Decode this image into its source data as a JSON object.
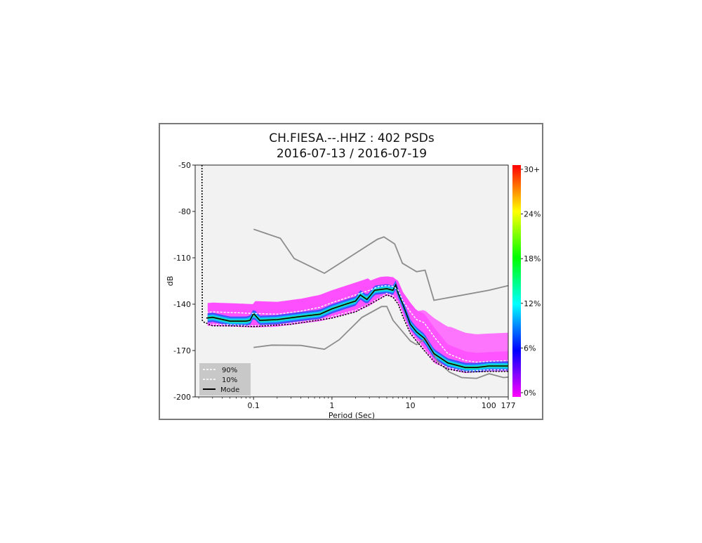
{
  "chart_data": {
    "type": "heatmap",
    "title": "CH.FIESA.--.HHZ : 402 PSDs",
    "subtitle": "2016-07-13 / 2016-07-19",
    "xlabel": "Period (Sec)",
    "ylabel": "dB",
    "x_scale": "log",
    "xlim": [
      0.018,
      177
    ],
    "ylim": [
      -200,
      -50
    ],
    "x_ticks": [
      {
        "value": 0.1,
        "label": "0.1"
      },
      {
        "value": 1,
        "label": "1"
      },
      {
        "value": 10,
        "label": "10"
      },
      {
        "value": 100,
        "label": "100"
      },
      {
        "value": 177,
        "label": "177"
      }
    ],
    "y_ticks": [
      {
        "value": -50,
        "label": "-50"
      },
      {
        "value": -80,
        "label": "-80"
      },
      {
        "value": -110,
        "label": "-110"
      },
      {
        "value": -140,
        "label": "-140"
      },
      {
        "value": -170,
        "label": "-170"
      },
      {
        "value": -200,
        "label": "-200"
      }
    ],
    "colorbar": {
      "ticks": [
        "30+",
        "24%",
        "18%",
        "12%",
        "6%",
        "0%"
      ],
      "colors": [
        "#ff00ff",
        "#0000ff",
        "#00ffff",
        "#00ff00",
        "#ffff00",
        "#ff0000"
      ]
    },
    "legend": {
      "position": "bottom-left",
      "entries": [
        {
          "label": "90%",
          "style": "dashed",
          "color": "#ffffff"
        },
        {
          "label": "10%",
          "style": "dashed",
          "color": "#ffffff"
        },
        {
          "label": "Mode",
          "style": "solid",
          "color": "#000000"
        }
      ]
    },
    "series": [
      {
        "key": "nhnm",
        "color": "#8c8c8c",
        "x": [
          0.1,
          0.22,
          0.33,
          0.8,
          3.8,
          4.6,
          6.3,
          7.9,
          12,
          15.4,
          20,
          100,
          177
        ],
        "y": [
          -91.5,
          -97.4,
          -110.5,
          -120,
          -98,
          -96.5,
          -101,
          -113.5,
          -119,
          -118,
          -137.5,
          -131,
          -128
        ]
      },
      {
        "key": "nlnm",
        "color": "#8c8c8c",
        "x": [
          0.1,
          0.17,
          0.4,
          0.8,
          1.24,
          2.4,
          4.3,
          5,
          6,
          10,
          12,
          15.6,
          21.9,
          31.6,
          45,
          70,
          101,
          154,
          177
        ],
        "y": [
          -168,
          -166.5,
          -166.7,
          -169.2,
          -163,
          -148.6,
          -141.5,
          -141.5,
          -150.4,
          -163.8,
          -166.2,
          -162.1,
          -176.6,
          -184,
          -187.5,
          -188,
          -185,
          -187.5,
          -187.2
        ]
      },
      {
        "key": "mode",
        "color": "#000000",
        "x": [
          0.025,
          0.03,
          0.05,
          0.08,
          0.09,
          0.1,
          0.12,
          0.2,
          0.4,
          0.7,
          1,
          1.5,
          2,
          2.3,
          2.8,
          3.5,
          5,
          6,
          6.5,
          7,
          8,
          10,
          12,
          15,
          20,
          30,
          50,
          70,
          100,
          177
        ],
        "y": [
          -149,
          -148.5,
          -151,
          -151,
          -150.5,
          -146,
          -150.5,
          -150,
          -148,
          -146.5,
          -143,
          -140,
          -138,
          -134,
          -137,
          -131,
          -130,
          -131,
          -127.5,
          -133,
          -140,
          -153,
          -158,
          -162,
          -172,
          -178,
          -181,
          -181,
          -180,
          -180
        ]
      },
      {
        "key": "p90",
        "color": "#ffffff",
        "x": [
          0.022,
          0.0225,
          0.03,
          0.06,
          0.1,
          0.2,
          0.4,
          0.7,
          1,
          2,
          3,
          4,
          5,
          6,
          7,
          8,
          10,
          12,
          15,
          20,
          30,
          50,
          70,
          100,
          177
        ],
        "y": [
          -50,
          -145.5,
          -145,
          -145.5,
          -146,
          -146.5,
          -144.5,
          -142,
          -139,
          -134,
          -131,
          -128.5,
          -128,
          -128.5,
          -131,
          -138,
          -145,
          -150,
          -152,
          -161,
          -172,
          -176.5,
          -177.5,
          -177,
          -176.5
        ]
      },
      {
        "key": "p10",
        "color": "#ffffff",
        "x": [
          0.022,
          0.03,
          0.06,
          0.1,
          0.2,
          0.4,
          0.7,
          1,
          2,
          3,
          5,
          6,
          7,
          8,
          10,
          12,
          15,
          20,
          30,
          50,
          70,
          100,
          177
        ],
        "y": [
          -153,
          -153,
          -153.5,
          -154,
          -153.5,
          -151.5,
          -150,
          -148,
          -144,
          -140,
          -133,
          -134.5,
          -139,
          -147,
          -158,
          -163,
          -169,
          -177,
          -181,
          -183.5,
          -183,
          -182.5,
          -182.5
        ]
      },
      {
        "key": "min",
        "color": "#000000",
        "x": [
          0.022,
          0.0222,
          0.023,
          0.03,
          0.05,
          0.1,
          0.3,
          1,
          2,
          5,
          6,
          7,
          8,
          10,
          15,
          20,
          30,
          50,
          100,
          177
        ],
        "y": [
          -50,
          -150.5,
          -151.5,
          -154,
          -154,
          -154.5,
          -153,
          -149,
          -145,
          -134,
          -135.5,
          -140,
          -148,
          -159,
          -170,
          -177,
          -182,
          -184,
          -183.5,
          -183.5
        ]
      }
    ]
  }
}
